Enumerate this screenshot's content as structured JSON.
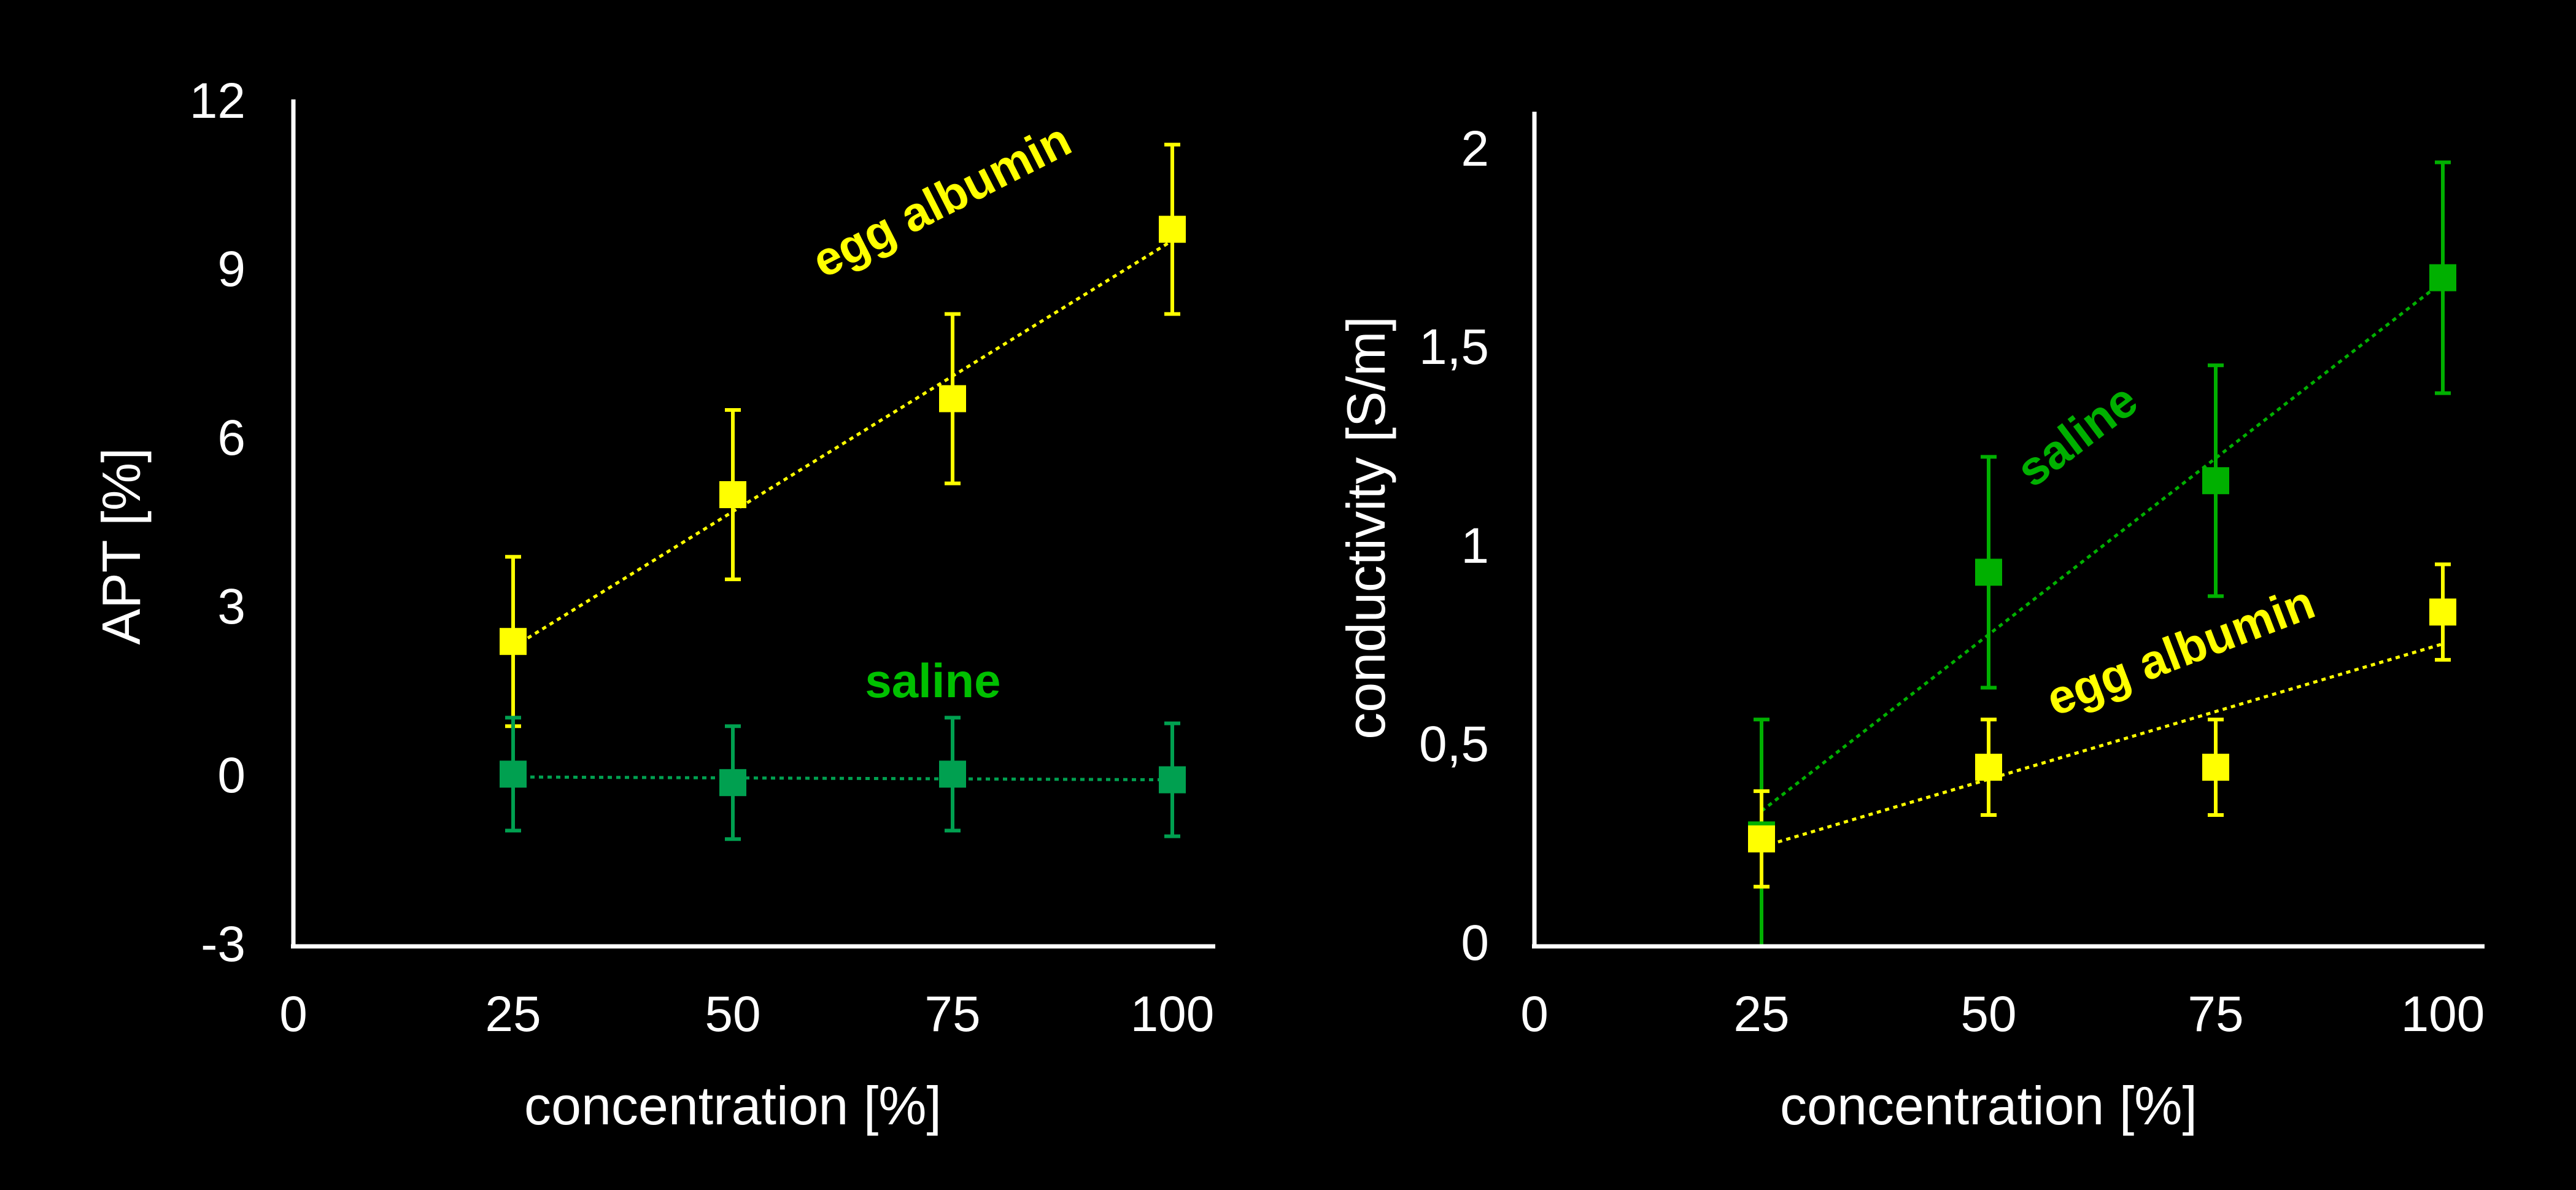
{
  "chart_data": [
    {
      "type": "scatter",
      "xlabel": "concentration [%]",
      "ylabel": "APT [%]",
      "xlim": [
        0,
        100
      ],
      "ylim": [
        -3,
        12
      ],
      "xticks": [
        "0",
        "25",
        "50",
        "75",
        "100"
      ],
      "yticks": [
        "-3",
        "0",
        "3",
        "6",
        "9",
        "12"
      ],
      "series": [
        {
          "name": "egg albumin",
          "color": "#ffff00",
          "x": [
            25,
            50,
            75,
            100
          ],
          "y": [
            2.4,
            5.0,
            6.7,
            9.7
          ],
          "err": [
            1.5,
            1.5,
            1.5,
            1.5
          ],
          "trend": [
            2.3,
            9.5
          ]
        },
        {
          "name": "saline",
          "color": "#00a050",
          "x": [
            25,
            50,
            75,
            100
          ],
          "y": [
            0.05,
            -0.1,
            0.05,
            -0.05
          ],
          "err": [
            1.0,
            1.0,
            1.0,
            1.0
          ],
          "trend": [
            0.0,
            -0.05
          ]
        }
      ],
      "annotations": [
        {
          "text": "egg albumin",
          "color": "#ffff00"
        },
        {
          "text": "saline",
          "color": "#00c000"
        }
      ]
    },
    {
      "type": "scatter",
      "xlabel": "concentration [%]",
      "ylabel": "conductivity [S/m]",
      "xlim": [
        0,
        100
      ],
      "ylim": [
        0,
        2
      ],
      "xticks": [
        "0",
        "25",
        "50",
        "75",
        "100"
      ],
      "yticks": [
        "0",
        "0,5",
        "1",
        "1,5",
        "2"
      ],
      "series": [
        {
          "name": "saline",
          "color": "#00b000",
          "x": [
            25,
            50,
            75,
            100
          ],
          "y": [
            0.28,
            0.94,
            1.17,
            1.68
          ],
          "err": [
            0.29,
            0.29,
            0.29,
            0.29
          ],
          "trend": [
            0.34,
            1.67
          ]
        },
        {
          "name": "egg albumin",
          "color": "#ffff00",
          "x": [
            25,
            50,
            75,
            100
          ],
          "y": [
            0.27,
            0.45,
            0.45,
            0.84
          ],
          "err": [
            0.12,
            0.12,
            0.12,
            0.12
          ],
          "trend": [
            0.25,
            0.76
          ]
        }
      ],
      "annotations": [
        {
          "text": "saline",
          "color": "#00b000"
        },
        {
          "text": "egg albumin",
          "color": "#ffff00"
        }
      ]
    }
  ]
}
